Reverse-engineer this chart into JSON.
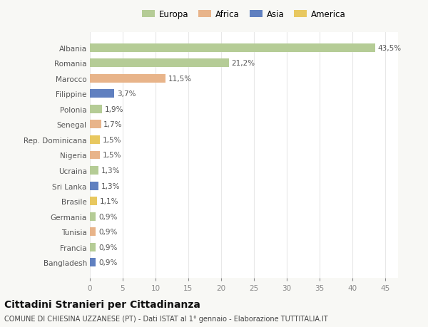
{
  "countries": [
    "Albania",
    "Romania",
    "Marocco",
    "Filippine",
    "Polonia",
    "Senegal",
    "Rep. Dominicana",
    "Nigeria",
    "Ucraina",
    "Sri Lanka",
    "Brasile",
    "Germania",
    "Tunisia",
    "Francia",
    "Bangladesh"
  ],
  "values": [
    43.5,
    21.2,
    11.5,
    3.7,
    1.9,
    1.7,
    1.5,
    1.5,
    1.3,
    1.3,
    1.1,
    0.9,
    0.9,
    0.9,
    0.9
  ],
  "labels": [
    "43,5%",
    "21,2%",
    "11,5%",
    "3,7%",
    "1,9%",
    "1,7%",
    "1,5%",
    "1,5%",
    "1,3%",
    "1,3%",
    "1,1%",
    "0,9%",
    "0,9%",
    "0,9%",
    "0,9%"
  ],
  "continents": [
    "Europa",
    "Europa",
    "Africa",
    "Asia",
    "Europa",
    "Africa",
    "America",
    "Africa",
    "Europa",
    "Asia",
    "America",
    "Europa",
    "Africa",
    "Europa",
    "Asia"
  ],
  "continent_colors": {
    "Europa": "#b5cc96",
    "Africa": "#e8b48a",
    "Asia": "#6080c0",
    "America": "#e8c860"
  },
  "legend_order": [
    "Europa",
    "Africa",
    "Asia",
    "America"
  ],
  "xlim": [
    0,
    47
  ],
  "xticks": [
    0,
    5,
    10,
    15,
    20,
    25,
    30,
    35,
    40,
    45
  ],
  "title": "Cittadini Stranieri per Cittadinanza",
  "subtitle": "COMUNE DI CHIESINA UZZANESE (PT) - Dati ISTAT al 1° gennaio - Elaborazione TUTTITALIA.IT",
  "bg_color": "#f8f8f5",
  "plot_bg_color": "#ffffff",
  "grid_color": "#e8e8e8",
  "bar_height": 0.55,
  "label_fontsize": 7.5,
  "axis_label_fontsize": 7.5,
  "title_fontsize": 10,
  "subtitle_fontsize": 7
}
